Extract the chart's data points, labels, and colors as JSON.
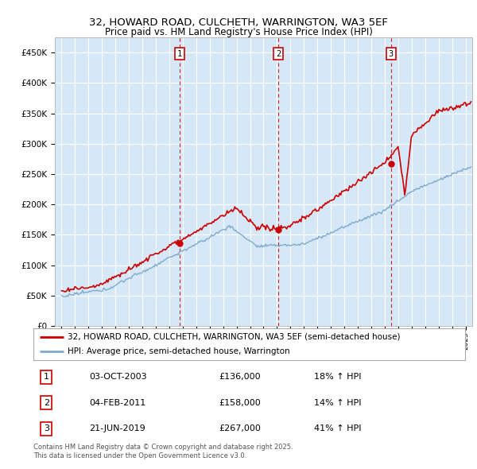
{
  "title": "32, HOWARD ROAD, CULCHETH, WARRINGTON, WA3 5EF",
  "subtitle": "Price paid vs. HM Land Registry's House Price Index (HPI)",
  "bg_color": "#d6e8f7",
  "hpi_color": "#7faacc",
  "price_color": "#cc0000",
  "vline_color": "#cc0000",
  "sale_points": [
    {
      "year": 2003.78,
      "price": 136000,
      "label": "1"
    },
    {
      "year": 2011.09,
      "price": 158000,
      "label": "2"
    },
    {
      "year": 2019.47,
      "price": 267000,
      "label": "3"
    }
  ],
  "legend_entries": [
    "32, HOWARD ROAD, CULCHETH, WARRINGTON, WA3 5EF (semi-detached house)",
    "HPI: Average price, semi-detached house, Warrington"
  ],
  "table_data": [
    [
      "1",
      "03-OCT-2003",
      "£136,000",
      "18% ↑ HPI"
    ],
    [
      "2",
      "04-FEB-2011",
      "£158,000",
      "14% ↑ HPI"
    ],
    [
      "3",
      "21-JUN-2019",
      "£267,000",
      "41% ↑ HPI"
    ]
  ],
  "footer": "Contains HM Land Registry data © Crown copyright and database right 2025.\nThis data is licensed under the Open Government Licence v3.0.",
  "ylim": [
    0,
    475000
  ],
  "xlim": [
    1994.5,
    2025.5
  ],
  "yticks": [
    0,
    50000,
    100000,
    150000,
    200000,
    250000,
    300000,
    350000,
    400000,
    450000
  ],
  "ytick_labels": [
    "£0",
    "£50K",
    "£100K",
    "£150K",
    "£200K",
    "£250K",
    "£300K",
    "£350K",
    "£400K",
    "£450K"
  ]
}
